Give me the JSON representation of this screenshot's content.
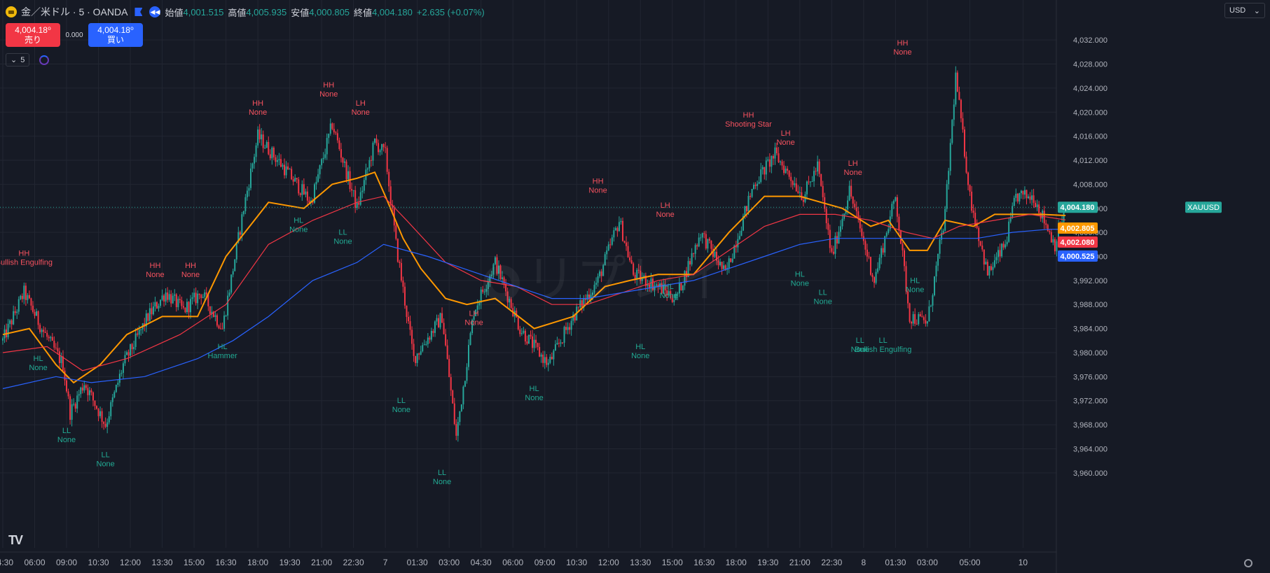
{
  "header": {
    "symbol": "金／米ドル · 5 · OANDA",
    "open_label": "始値",
    "open_value": "4,001.515",
    "high_label": "高値",
    "high_value": "4,005.935",
    "low_label": "安値",
    "low_value": "4,000.805",
    "close_label": "終値",
    "close_value": "4,004.180",
    "change": "+2.635 (+0.07%)"
  },
  "trade": {
    "sell_price": "4,004.18⁰",
    "sell_label": "売り",
    "spread": "0.000",
    "buy_price": "4,004.18⁰",
    "buy_label": "買い"
  },
  "indicator_count": "5",
  "currency": "USD",
  "watermark": "リプレイ",
  "colors": {
    "up": "#26a69a",
    "down": "#f23645",
    "ema_fast": "#ff9800",
    "ema_mid": "#f23645",
    "ema_slow": "#2962ff",
    "bg": "#161a25",
    "grid": "#222632"
  },
  "chart_data": {
    "type": "candlestick",
    "symbol": "XAUUSD",
    "ylim": [
      3958,
      4034
    ],
    "y_ticks": [
      "4,032.000",
      "4,028.000",
      "4,024.000",
      "4,020.000",
      "4,016.000",
      "4,012.000",
      "4,008.000",
      "4,004.000",
      "4,000.000",
      "3,996.000",
      "3,992.000",
      "3,988.000",
      "3,984.000",
      "3,980.000",
      "3,976.000",
      "3,972.000",
      "3,968.000",
      "3,964.000",
      "3,960.000"
    ],
    "x_ticks": [
      "04:30",
      "06:00",
      "09:00",
      "10:30",
      "12:00",
      "13:30",
      "15:00",
      "16:30",
      "18:00",
      "19:30",
      "21:00",
      "22:30",
      "7",
      "01:30",
      "03:00",
      "04:30",
      "06:00",
      "09:00",
      "10:30",
      "12:00",
      "13:30",
      "15:00",
      "16:30",
      "18:00",
      "19:30",
      "21:00",
      "22:30",
      "8",
      "01:30",
      "03:00",
      "05:00",
      "10"
    ],
    "x_tick_bars": [
      0,
      18,
      36,
      54,
      72,
      90,
      108,
      126,
      144,
      162,
      180,
      198,
      216,
      234,
      252,
      270,
      288,
      306,
      324,
      342,
      360,
      378,
      396,
      414,
      432,
      450,
      468,
      486,
      504,
      522,
      546,
      576
    ],
    "bars_total": 580,
    "anchors": [
      [
        0,
        3982
      ],
      [
        12,
        3990
      ],
      [
        22,
        3984
      ],
      [
        34,
        3978
      ],
      [
        38,
        3970
      ],
      [
        46,
        3975
      ],
      [
        58,
        3968
      ],
      [
        68,
        3978
      ],
      [
        82,
        3986
      ],
      [
        92,
        3990
      ],
      [
        102,
        3987
      ],
      [
        112,
        3990
      ],
      [
        124,
        3984
      ],
      [
        130,
        3994
      ],
      [
        136,
        4004
      ],
      [
        144,
        4016
      ],
      [
        158,
        4011
      ],
      [
        174,
        4005
      ],
      [
        186,
        4018
      ],
      [
        200,
        4004
      ],
      [
        210,
        4015
      ],
      [
        216,
        4013
      ],
      [
        222,
        3998
      ],
      [
        232,
        3979
      ],
      [
        248,
        3986
      ],
      [
        256,
        3966
      ],
      [
        266,
        3987
      ],
      [
        278,
        3995
      ],
      [
        292,
        3984
      ],
      [
        308,
        3978
      ],
      [
        322,
        3986
      ],
      [
        336,
        3992
      ],
      [
        348,
        4002
      ],
      [
        356,
        3993
      ],
      [
        370,
        3991
      ],
      [
        380,
        3989
      ],
      [
        394,
        4000
      ],
      [
        408,
        3993
      ],
      [
        424,
        4008
      ],
      [
        436,
        4013
      ],
      [
        452,
        4006
      ],
      [
        460,
        4011
      ],
      [
        468,
        3996
      ],
      [
        478,
        4007
      ],
      [
        492,
        3992
      ],
      [
        504,
        4006
      ],
      [
        512,
        3986
      ],
      [
        522,
        3985
      ],
      [
        532,
        4003
      ],
      [
        538,
        4026
      ],
      [
        546,
        4006
      ],
      [
        556,
        3993
      ],
      [
        566,
        3998
      ],
      [
        572,
        4006
      ],
      [
        582,
        4006
      ],
      [
        594,
        3998
      ],
      [
        600,
        4004
      ]
    ],
    "series": [
      {
        "name": "4,002.805",
        "color": "#ff9800",
        "points": [
          [
            0,
            3983
          ],
          [
            15,
            3984
          ],
          [
            30,
            3978
          ],
          [
            40,
            3975
          ],
          [
            55,
            3978
          ],
          [
            70,
            3983
          ],
          [
            90,
            3986
          ],
          [
            110,
            3986
          ],
          [
            126,
            3996
          ],
          [
            150,
            4005
          ],
          [
            170,
            4004
          ],
          [
            186,
            4008
          ],
          [
            200,
            4009
          ],
          [
            210,
            4010
          ],
          [
            216,
            4006
          ],
          [
            226,
            3999
          ],
          [
            236,
            3994
          ],
          [
            250,
            3989
          ],
          [
            262,
            3988
          ],
          [
            278,
            3989
          ],
          [
            300,
            3984
          ],
          [
            322,
            3986
          ],
          [
            340,
            3991
          ],
          [
            354,
            3992
          ],
          [
            370,
            3993
          ],
          [
            390,
            3993
          ],
          [
            410,
            4000
          ],
          [
            430,
            4006
          ],
          [
            450,
            4006
          ],
          [
            462,
            4005
          ],
          [
            474,
            4004
          ],
          [
            490,
            4001
          ],
          [
            500,
            4002
          ],
          [
            512,
            3997
          ],
          [
            522,
            3997
          ],
          [
            532,
            4002
          ],
          [
            548,
            4001
          ],
          [
            560,
            4003
          ],
          [
            574,
            4003
          ],
          [
            586,
            4003
          ],
          [
            600,
            4002.805
          ]
        ]
      },
      {
        "name": "4,002.080",
        "color": "#f23645",
        "points": [
          [
            0,
            3980
          ],
          [
            25,
            3981
          ],
          [
            45,
            3977
          ],
          [
            70,
            3979
          ],
          [
            100,
            3983
          ],
          [
            126,
            3988
          ],
          [
            150,
            3998
          ],
          [
            175,
            4002
          ],
          [
            200,
            4005
          ],
          [
            215,
            4006
          ],
          [
            228,
            4002
          ],
          [
            250,
            3995
          ],
          [
            270,
            3992
          ],
          [
            290,
            3991
          ],
          [
            310,
            3988
          ],
          [
            330,
            3988
          ],
          [
            350,
            3990
          ],
          [
            370,
            3992
          ],
          [
            390,
            3993
          ],
          [
            410,
            3997
          ],
          [
            430,
            4001
          ],
          [
            450,
            4003
          ],
          [
            470,
            4003
          ],
          [
            490,
            4002
          ],
          [
            510,
            4000
          ],
          [
            525,
            3999
          ],
          [
            540,
            4001
          ],
          [
            560,
            4002
          ],
          [
            580,
            4003
          ],
          [
            600,
            4002.08
          ]
        ]
      },
      {
        "name": "4,000.525",
        "color": "#2962ff",
        "points": [
          [
            0,
            3974
          ],
          [
            30,
            3976
          ],
          [
            50,
            3975
          ],
          [
            80,
            3976
          ],
          [
            110,
            3979
          ],
          [
            130,
            3982
          ],
          [
            150,
            3986
          ],
          [
            175,
            3992
          ],
          [
            200,
            3995
          ],
          [
            215,
            3998
          ],
          [
            240,
            3996
          ],
          [
            260,
            3994
          ],
          [
            290,
            3991
          ],
          [
            310,
            3989
          ],
          [
            330,
            3989
          ],
          [
            350,
            3990
          ],
          [
            370,
            3991
          ],
          [
            390,
            3992
          ],
          [
            410,
            3994
          ],
          [
            430,
            3996
          ],
          [
            450,
            3998
          ],
          [
            470,
            3999
          ],
          [
            490,
            3999
          ],
          [
            510,
            3999
          ],
          [
            530,
            3999
          ],
          [
            550,
            3999
          ],
          [
            570,
            4000
          ],
          [
            590,
            4000.5
          ],
          [
            600,
            4000.525
          ]
        ]
      }
    ],
    "price_labels": [
      {
        "text": "XAUUSD",
        "color": "#26a69a"
      },
      {
        "text": "4,004.180",
        "color": "#26a69a",
        "value": 4004.18
      },
      {
        "text": "4,002.805",
        "color": "#ff9800",
        "value": 4002.805
      },
      {
        "text": "4,002.080",
        "color": "#f23645",
        "value": 4002.08
      },
      {
        "text": "4,000.525",
        "color": "#2962ff",
        "value": 4000.525
      }
    ],
    "annotations": [
      {
        "bar": 12,
        "price": 3994,
        "above": true,
        "text1": "HH",
        "text2": "Bullish Engulfing"
      },
      {
        "bar": 20,
        "price": 3980,
        "above": false,
        "text1": "HL",
        "text2": "None"
      },
      {
        "bar": 36,
        "price": 3968,
        "above": false,
        "text1": "LL",
        "text2": "None"
      },
      {
        "bar": 58,
        "price": 3964,
        "above": false,
        "text1": "LL",
        "text2": "None"
      },
      {
        "bar": 86,
        "price": 3992,
        "above": true,
        "text1": "HH",
        "text2": "None"
      },
      {
        "bar": 106,
        "price": 3992,
        "above": true,
        "text1": "HH",
        "text2": "None"
      },
      {
        "bar": 124,
        "price": 3982,
        "above": false,
        "text1": "HL",
        "text2": "Hammer"
      },
      {
        "bar": 144,
        "price": 4019,
        "above": true,
        "text1": "HH",
        "text2": "None"
      },
      {
        "bar": 167,
        "price": 4003,
        "above": false,
        "text1": "HL",
        "text2": "None"
      },
      {
        "bar": 184,
        "price": 4022,
        "above": true,
        "text1": "HH",
        "text2": "None"
      },
      {
        "bar": 192,
        "price": 4001,
        "above": false,
        "text1": "LL",
        "text2": "None"
      },
      {
        "bar": 202,
        "price": 4019,
        "above": true,
        "text1": "LH",
        "text2": "None"
      },
      {
        "bar": 225,
        "price": 3973,
        "above": false,
        "text1": "LL",
        "text2": "None"
      },
      {
        "bar": 266,
        "printedbar": false,
        "price": 3984,
        "above": true,
        "text1": "LH",
        "text2": "None"
      },
      {
        "bar": 248,
        "price": 3961,
        "above": false,
        "text1": "LL",
        "text2": "None"
      },
      {
        "bar": 300,
        "price": 3975,
        "above": false,
        "text1": "HL",
        "text2": "None"
      },
      {
        "bar": 336,
        "price": 4006,
        "above": true,
        "text1": "HH",
        "text2": "None"
      },
      {
        "bar": 360,
        "price": 3982,
        "above": false,
        "text1": "HL",
        "text2": "None"
      },
      {
        "bar": 374,
        "price": 4002,
        "above": true,
        "text1": "LH",
        "text2": "None"
      },
      {
        "bar": 376,
        "price": 3992,
        "above": false,
        "text1": "HL",
        "text2": "None"
      },
      {
        "bar": 421,
        "price": 4017,
        "above": true,
        "text1": "HH",
        "text2": "Shooting Star"
      },
      {
        "bar": 442,
        "price": 4014,
        "above": true,
        "text1": "LH",
        "text2": "None"
      },
      {
        "bar": 450,
        "price": 3994,
        "above": false,
        "text1": "HL",
        "text2": "None"
      },
      {
        "bar": 463,
        "price": 3991,
        "above": false,
        "text1": "LL",
        "text2": "None"
      },
      {
        "bar": 480,
        "price": 4009,
        "above": true,
        "text1": "LH",
        "text2": "None"
      },
      {
        "bar": 484,
        "price": 3983,
        "above": false,
        "text1": "LL",
        "text2": "None"
      },
      {
        "bar": 497,
        "price": 3983,
        "above": false,
        "text1": "LL",
        "text2": "Bullish Engulfing"
      },
      {
        "bar": 508,
        "price": 4029,
        "above": true,
        "text1": "HH",
        "text2": "None"
      },
      {
        "bar": 515,
        "price": 3993,
        "above": false,
        "text1": "HL",
        "text2": "None"
      }
    ]
  }
}
